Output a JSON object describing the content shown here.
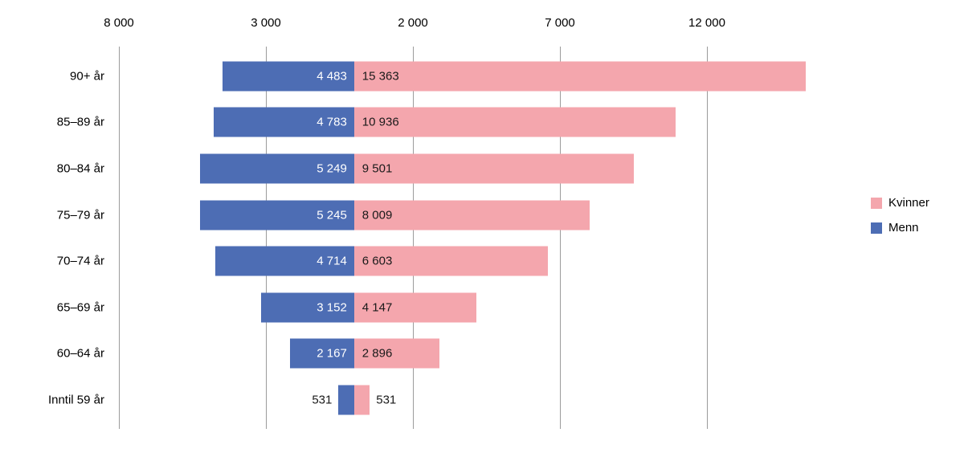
{
  "chart_data": {
    "type": "bar",
    "variant": "diverging-horizontal-population-pyramid",
    "title": "",
    "categories": [
      "90+ år",
      "85–89 år",
      "80–84 år",
      "75–79 år",
      "70–74 år",
      "65–69 år",
      "60–64 år",
      "Inntil 59 år"
    ],
    "series": [
      {
        "name": "Menn",
        "side": "left",
        "color": "#4d6db4",
        "values": [
          4483,
          4783,
          5249,
          5245,
          4714,
          3152,
          2167,
          531
        ],
        "labels": [
          "4 483",
          "4 783",
          "5 249",
          "5 245",
          "4 714",
          "3 152",
          "2 167",
          "531"
        ],
        "label_color_inside": "#ffffff"
      },
      {
        "name": "Kvinner",
        "side": "right",
        "color": "#f4a6ad",
        "values": [
          15363,
          10936,
          9501,
          8009,
          6603,
          4147,
          2896,
          531
        ],
        "labels": [
          "15 363",
          "10 936",
          "9 501",
          "8 009",
          "6 603",
          "4 147",
          "2 896",
          "531"
        ],
        "label_color_inside": "#1a1a1a"
      }
    ],
    "axis": {
      "position": "top",
      "ticks": [
        -8000,
        -3000,
        2000,
        7000,
        12000
      ],
      "tick_labels": [
        "8 000",
        "3 000",
        "2 000",
        "7 000",
        "12 000"
      ],
      "tick_step": 5000,
      "grid": true,
      "gridline_color": "#9b9b9b"
    },
    "legend": {
      "position": "right",
      "items": [
        {
          "label": "Kvinner",
          "color": "#f4a6ad"
        },
        {
          "label": "Menn",
          "color": "#4d6db4"
        }
      ]
    }
  }
}
